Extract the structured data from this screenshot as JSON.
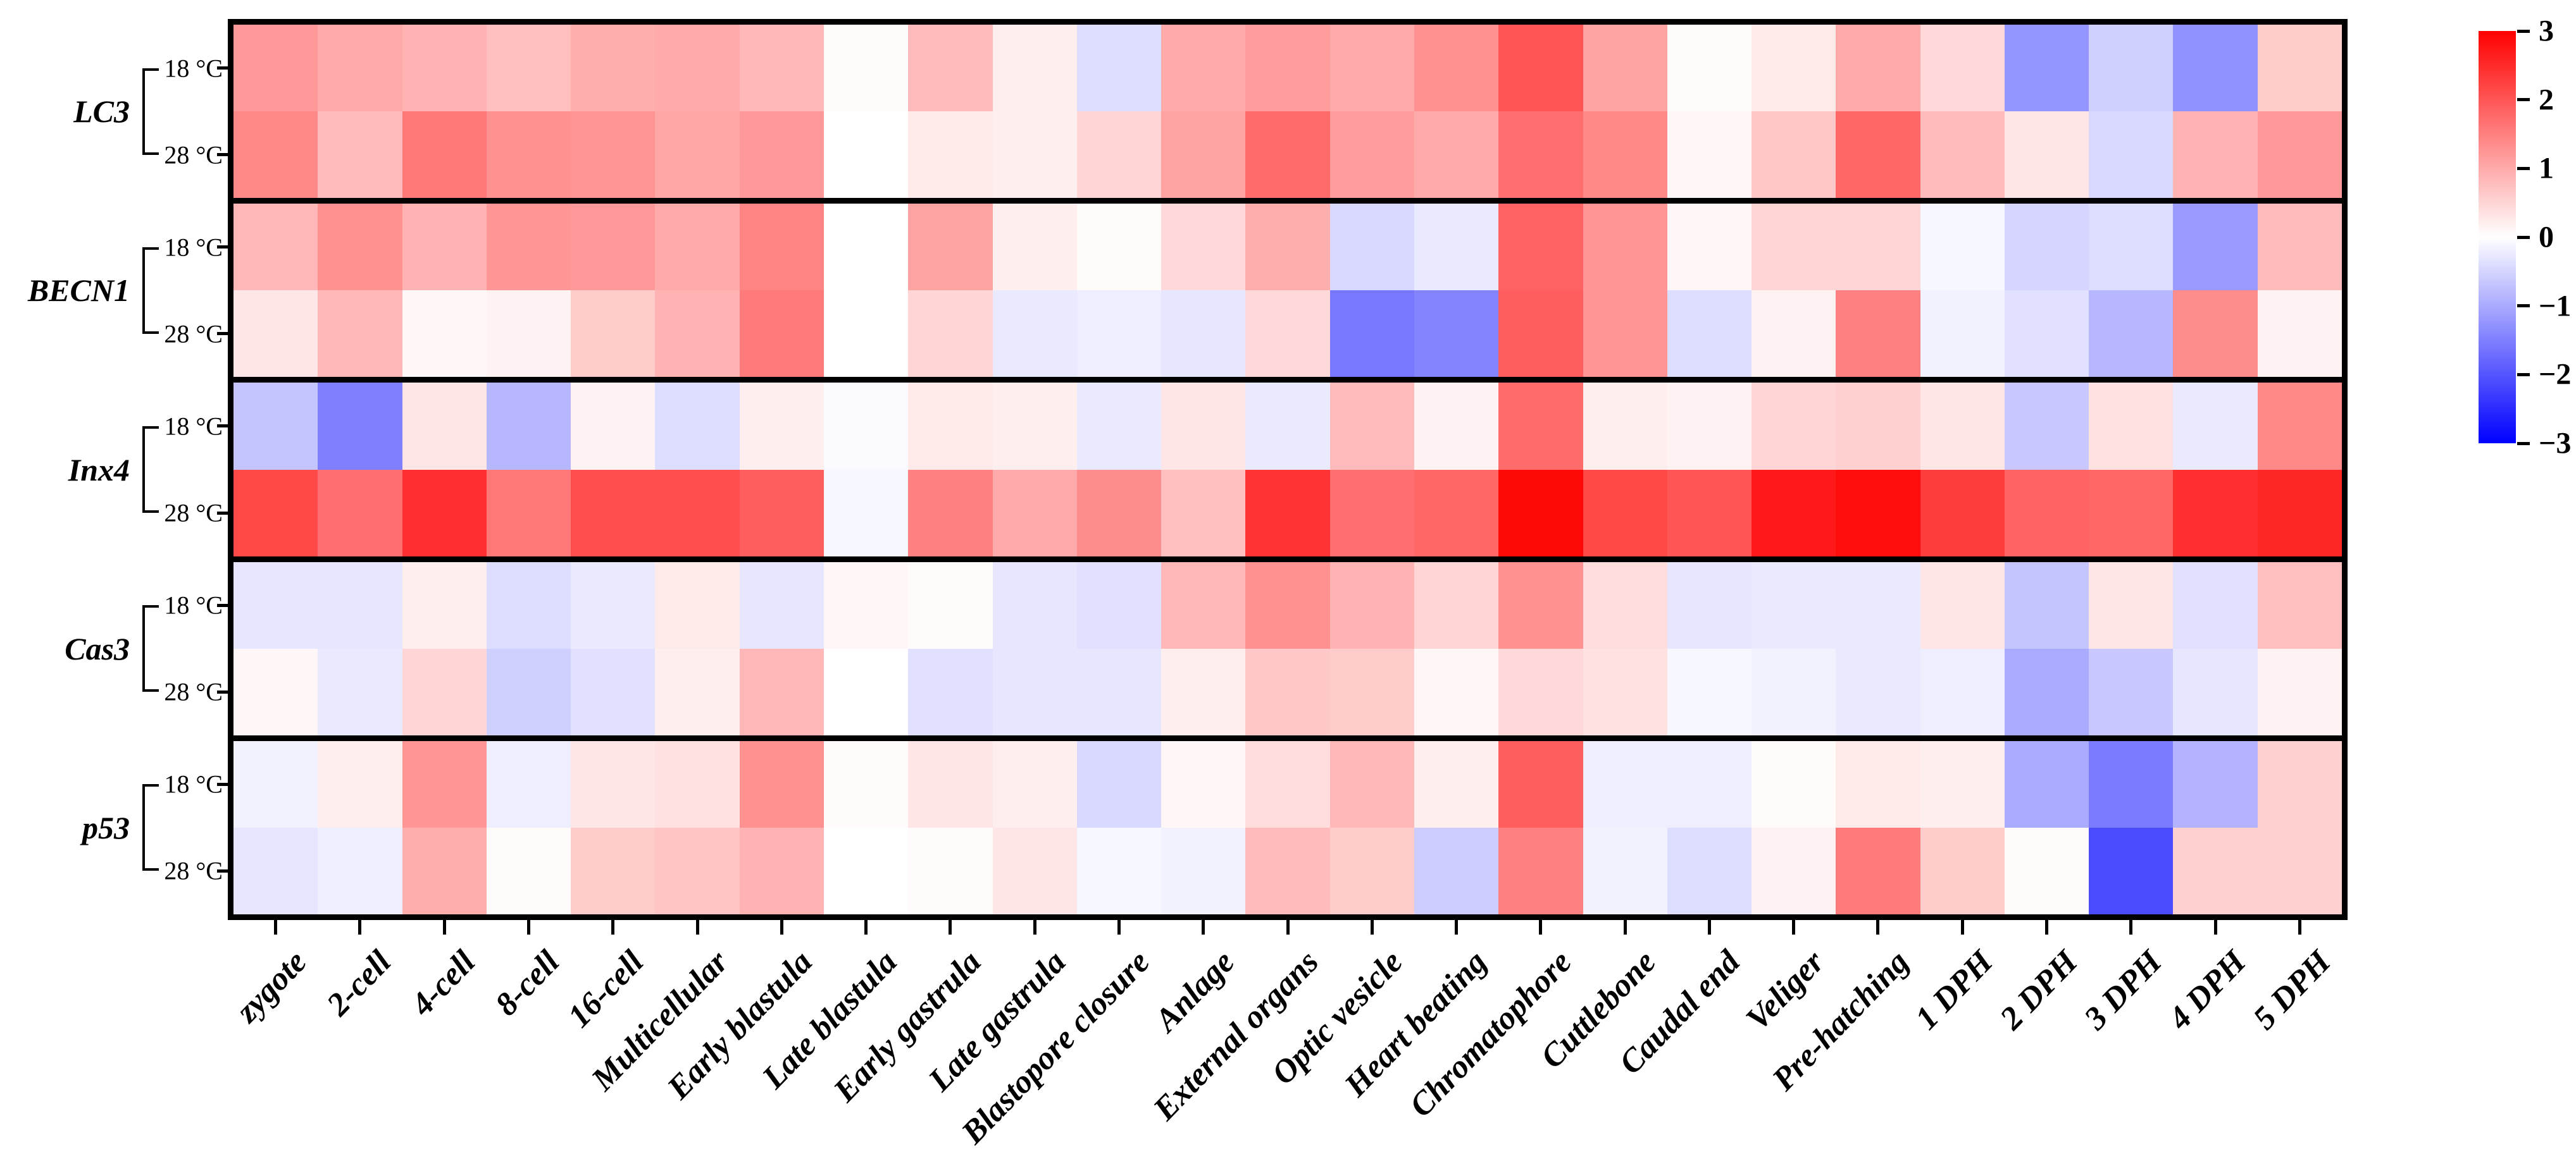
{
  "chart_data": {
    "type": "heatmap",
    "title": "",
    "xlabel": "",
    "ylabel": "",
    "grid": false,
    "colormap": "blue-white-red",
    "value_range": [
      -3,
      3
    ],
    "x_categories": [
      "zygote",
      "2-cell",
      "4-cell",
      "8-cell",
      "16-cell",
      "Multicellular",
      "Early blastula",
      "Late blastula",
      "Early gastrula",
      "Late gastrula",
      "Blastopore closure",
      "Anlage",
      "External organs",
      "Optic vesicle",
      "Heart beating",
      "Chromatophore",
      "Cuttlebone",
      "Caudal end",
      "Veliger",
      "Pre-hatching",
      "1 DPH",
      "2 DPH",
      "3 DPH",
      "4 DPH",
      "5 DPH"
    ],
    "row_groups": [
      {
        "gene": "LC3",
        "rows": [
          {
            "temp": "18 °C",
            "values": [
              1.2,
              1.0,
              0.9,
              0.75,
              0.95,
              1.0,
              0.85,
              0.05,
              0.8,
              0.2,
              -0.4,
              1.0,
              1.15,
              1.0,
              1.3,
              2.0,
              1.1,
              0.05,
              0.25,
              1.0,
              0.45,
              -1.25,
              -0.55,
              -1.3,
              0.6
            ]
          },
          {
            "temp": "28 °C",
            "values": [
              1.4,
              0.8,
              1.6,
              1.3,
              1.25,
              1.05,
              1.2,
              0.0,
              0.25,
              0.2,
              0.5,
              1.1,
              1.75,
              1.15,
              1.0,
              1.7,
              1.4,
              0.1,
              0.65,
              1.8,
              0.8,
              0.3,
              -0.45,
              0.9,
              1.2
            ]
          }
        ]
      },
      {
        "gene": "BECN1",
        "rows": [
          {
            "temp": "18 °C",
            "values": [
              0.85,
              1.3,
              0.9,
              1.25,
              1.2,
              1.0,
              1.45,
              0.0,
              1.1,
              0.2,
              0.05,
              0.45,
              0.95,
              -0.45,
              -0.25,
              1.85,
              1.25,
              0.1,
              0.5,
              0.5,
              -0.1,
              -0.5,
              -0.4,
              -1.2,
              0.8
            ]
          },
          {
            "temp": "28 °C",
            "values": [
              0.3,
              0.85,
              0.1,
              0.15,
              0.6,
              0.9,
              1.55,
              0.0,
              0.5,
              -0.25,
              -0.2,
              -0.3,
              0.45,
              -1.6,
              -1.45,
              1.9,
              1.25,
              -0.4,
              0.15,
              1.5,
              -0.15,
              -0.35,
              -0.85,
              1.35,
              0.15
            ]
          }
        ]
      },
      {
        "gene": "Inx4",
        "rows": [
          {
            "temp": "18 °C",
            "values": [
              -0.7,
              -1.5,
              0.3,
              -0.85,
              0.15,
              -0.4,
              0.2,
              -0.05,
              0.25,
              0.2,
              -0.25,
              0.3,
              -0.25,
              0.8,
              0.15,
              1.75,
              0.2,
              0.15,
              0.5,
              0.55,
              0.3,
              -0.65,
              0.35,
              -0.25,
              1.4
            ]
          },
          {
            "temp": "28 °C",
            "values": [
              2.15,
              1.7,
              2.45,
              1.6,
              2.1,
              2.1,
              1.9,
              -0.1,
              1.5,
              1.0,
              1.35,
              0.75,
              2.4,
              1.7,
              1.8,
              2.9,
              2.15,
              2.0,
              2.7,
              2.85,
              2.3,
              1.85,
              1.8,
              2.45,
              2.55
            ]
          }
        ]
      },
      {
        "gene": "Cas3",
        "rows": [
          {
            "temp": "18 °C",
            "values": [
              -0.3,
              -0.3,
              0.2,
              -0.4,
              -0.25,
              0.25,
              -0.3,
              0.1,
              0.05,
              -0.3,
              -0.35,
              0.85,
              1.3,
              0.9,
              0.5,
              1.3,
              0.4,
              -0.3,
              -0.25,
              -0.25,
              0.3,
              -0.7,
              0.3,
              -0.35,
              0.75
            ]
          },
          {
            "temp": "28 °C",
            "values": [
              0.1,
              -0.25,
              0.5,
              -0.55,
              -0.35,
              0.2,
              0.85,
              0.0,
              -0.35,
              -0.3,
              -0.3,
              0.2,
              0.65,
              0.6,
              0.1,
              0.45,
              0.35,
              -0.1,
              -0.15,
              -0.25,
              -0.2,
              -1.0,
              -0.65,
              -0.3,
              0.15
            ]
          }
        ]
      },
      {
        "gene": "p53",
        "rows": [
          {
            "temp": "18 °C",
            "values": [
              -0.15,
              0.2,
              1.25,
              -0.2,
              0.3,
              0.35,
              1.3,
              0.05,
              0.3,
              0.2,
              -0.45,
              0.1,
              0.4,
              0.85,
              0.2,
              1.9,
              -0.2,
              -0.2,
              0.05,
              0.25,
              0.2,
              -1.0,
              -1.55,
              -0.9,
              0.55
            ]
          },
          {
            "temp": "28 °C",
            "values": [
              -0.3,
              -0.2,
              0.95,
              0.05,
              0.6,
              0.7,
              0.9,
              0.0,
              0.05,
              0.3,
              -0.1,
              -0.15,
              0.8,
              0.6,
              -0.6,
              1.5,
              -0.15,
              -0.4,
              0.15,
              1.55,
              0.6,
              0.05,
              -2.1,
              0.55,
              0.55
            ]
          }
        ]
      }
    ],
    "colorbar": {
      "position": "right",
      "max": 3,
      "min": -3,
      "tick_labels": [
        "3",
        "2",
        "1",
        "0",
        "−1",
        "−2",
        "−3"
      ],
      "tick_values": [
        3,
        2,
        1,
        0,
        -1,
        -2,
        -3
      ],
      "top_color": "#ff0000",
      "mid_color": "#ffffff",
      "bottom_color": "#0000ff"
    },
    "colors": {
      "border": "#000000",
      "background": "#ffffff",
      "text": "#000000"
    }
  }
}
